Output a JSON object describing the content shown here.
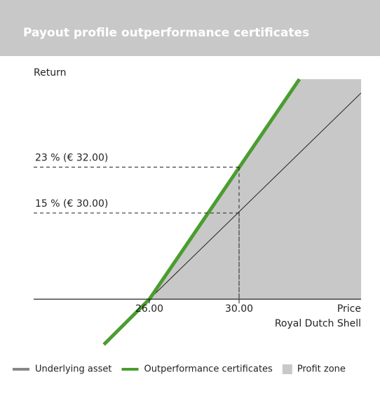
{
  "chart_data": {
    "type": "line",
    "title": "Payout profile outperformance certificates",
    "ylabel": "Return",
    "xlabel": [
      "Price",
      "Royal Dutch Shell"
    ],
    "xlim": [
      20.84,
      35.44
    ],
    "ylim": [
      -10,
      38.3
    ],
    "xticks": [
      {
        "value": 26,
        "label": "26.00"
      },
      {
        "value": 30,
        "label": "30.00"
      }
    ],
    "legend": "bottom",
    "series": [
      {
        "name": "Profit zone",
        "color": "#c8c8c8",
        "style": "area",
        "x": [
          26,
          32.69,
          35.44,
          35.44
        ],
        "values": [
          0,
          38.3,
          38.3,
          0
        ]
      },
      {
        "name": "Underlying asset",
        "color": "#222222",
        "legend_color": "#888888",
        "style": "line",
        "x": [
          26,
          35.44
        ],
        "values": [
          0,
          35.9
        ]
      },
      {
        "name": "Outperformance certificates",
        "color": "#4a9d2f",
        "style": "line",
        "x": [
          23.97,
          26,
          32.69
        ],
        "values": [
          -7.9,
          0,
          38.3
        ]
      }
    ],
    "annotations": [
      {
        "text": "23 % (€ 32.00)",
        "x": 30,
        "y": 23
      },
      {
        "text": "15 % (€ 30.00)",
        "x": 30,
        "y": 15
      }
    ]
  }
}
